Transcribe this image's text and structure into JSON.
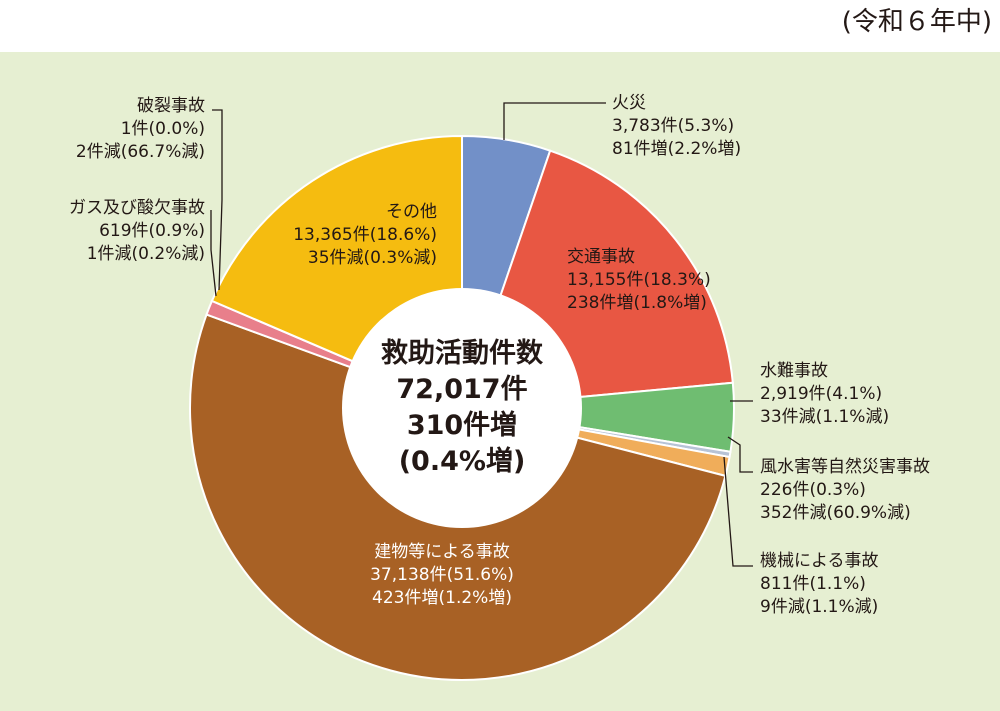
{
  "header": {
    "year": "(令和６年中)"
  },
  "colors": {
    "panel_bg": "#e6efd2",
    "fire": "#7290c8",
    "traffic": "#e85743",
    "water": "#6fbd71",
    "storm": "#b7c3d6",
    "machine": "#f0ad5a",
    "building": "#a86125",
    "gas": "#e87f8b",
    "rupture": "#c8c8c8",
    "other": "#f5bc10"
  },
  "center": {
    "line1": "救助活動件数",
    "line2": "72,017件",
    "line3": "310件増",
    "line4": "(0.4%増)"
  },
  "chart_data": {
    "type": "pie",
    "title": "",
    "total": 72017,
    "slices": [
      {
        "key": "fire",
        "name": "火災",
        "value": 3783,
        "value_text": "3,783件(5.3%)",
        "change_text": "81件増(2.2%増)"
      },
      {
        "key": "traffic",
        "name": "交通事故",
        "value": 13155,
        "value_text": "13,155件(18.3%)",
        "change_text": "238件増(1.8%増)"
      },
      {
        "key": "water",
        "name": "水難事故",
        "value": 2919,
        "value_text": "2,919件(4.1%)",
        "change_text": "33件減(1.1%減)"
      },
      {
        "key": "storm",
        "name": "風水害等自然災害事故",
        "value": 226,
        "value_text": "226件(0.3%)",
        "change_text": "352件減(60.9%減)"
      },
      {
        "key": "machine",
        "name": "機械による事故",
        "value": 811,
        "value_text": "811件(1.1%)",
        "change_text": "9件減(1.1%減)"
      },
      {
        "key": "building",
        "name": "建物等による事故",
        "value": 37138,
        "value_text": "37,138件(51.6%)",
        "change_text": "423件増(1.2%増)"
      },
      {
        "key": "gas",
        "name": "ガス及び酸欠事故",
        "value": 619,
        "value_text": "619件(0.9%)",
        "change_text": "1件減(0.2%減)"
      },
      {
        "key": "rupture",
        "name": "破裂事故",
        "value": 1,
        "value_text": "1件(0.0%)",
        "change_text": "2件減(66.7%減)"
      },
      {
        "key": "other",
        "name": "その他",
        "value": 13365,
        "value_text": "13,365件(18.6%)",
        "change_text": "35件減(0.3%減)"
      }
    ]
  }
}
